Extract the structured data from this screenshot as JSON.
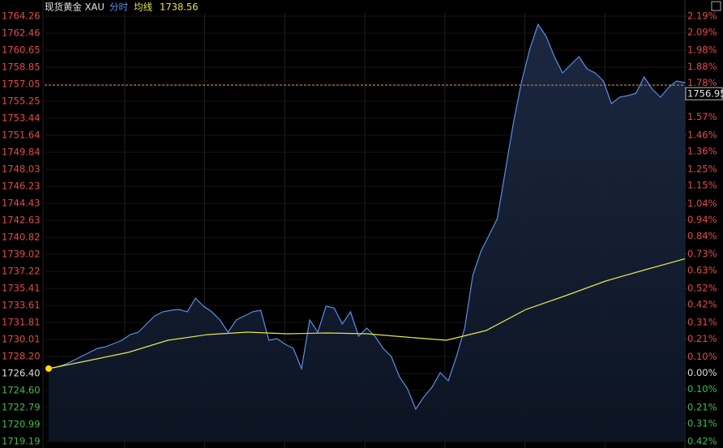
{
  "chart_data": {
    "type": "line",
    "title": "现货黄金 XAU",
    "series": [
      {
        "name": "分时",
        "color": "#5b8ee6",
        "values": [
          1726.92,
          1727.09,
          1727.35,
          1727.77,
          1728.2,
          1728.63,
          1729.06,
          1729.23,
          1729.58,
          1729.92,
          1730.52,
          1730.78,
          1731.64,
          1732.5,
          1732.93,
          1733.1,
          1733.18,
          1732.93,
          1734.38,
          1733.53,
          1732.93,
          1732.07,
          1730.78,
          1732.07,
          1732.5,
          1732.93,
          1733.1,
          1729.92,
          1730.09,
          1729.49,
          1729.06,
          1726.92,
          1732.07,
          1730.78,
          1733.53,
          1733.35,
          1731.64,
          1732.93,
          1730.35,
          1731.21,
          1730.35,
          1729.06,
          1728.2,
          1726.06,
          1724.77,
          1722.62,
          1723.91,
          1724.94,
          1726.49,
          1725.63,
          1728.2,
          1731.21,
          1736.79,
          1739.36,
          1741.08,
          1742.8,
          1747.95,
          1753.1,
          1757.39,
          1760.83,
          1763.4,
          1762.11,
          1759.97,
          1758.25,
          1759.11,
          1759.97,
          1758.68,
          1758.25,
          1757.39,
          1754.99,
          1755.68,
          1755.85,
          1756.1,
          1757.82,
          1756.53,
          1755.68,
          1756.71,
          1757.39,
          1757.22
        ]
      },
      {
        "name": "均线",
        "color": "#e6e64a",
        "values": [
          1726.92,
          1727.77,
          1728.63,
          1729.92,
          1730.52,
          1730.78,
          1730.61,
          1730.69,
          1730.61,
          1730.26,
          1729.92,
          1730.95,
          1733.18,
          1734.64,
          1736.19,
          1737.39,
          1738.56
        ]
      }
    ],
    "last_price": 1756.95,
    "ref_color": "#e08a3c",
    "up_color": "#e84a4a",
    "down_color": "#3cc04a",
    "flat_color": "#dddddd",
    "ylim": [
      1719.19,
      1764.26
    ],
    "yticks": [
      1764.26,
      1762.46,
      1760.65,
      1758.85,
      1757.05,
      1755.25,
      1753.44,
      1751.64,
      1749.84,
      1748.03,
      1746.23,
      1744.43,
      1742.63,
      1740.82,
      1739.02,
      1737.22,
      1735.41,
      1733.61,
      1731.81,
      1730.01,
      {
        "value": 1728.2,
        "label": "1728.20"
      },
      {
        "value": 1726.4,
        "label": "1726.40"
      },
      {
        "value": 1724.6,
        "label": "1724.60"
      },
      1722.79,
      1720.99,
      1719.19
    ],
    "y2lim": [
      -0.42,
      2.19
    ],
    "y2ticks": [
      {
        "value": 2.19,
        "label": "2.19%"
      },
      {
        "value": 2.09,
        "label": "2.09%"
      },
      {
        "value": 1.98,
        "label": "1.98%"
      },
      {
        "value": 1.88,
        "label": "1.88%"
      },
      {
        "value": 1.78,
        "label": "1.78%"
      },
      {
        "value": 1.57,
        "label": "1.57%"
      },
      {
        "value": 1.46,
        "label": "1.46%"
      },
      {
        "value": 1.36,
        "label": "1.36%"
      },
      {
        "value": 1.25,
        "label": "1.25%"
      },
      {
        "value": 1.15,
        "label": "1.15%"
      },
      {
        "value": 1.04,
        "label": "1.04%"
      },
      {
        "value": 0.94,
        "label": "0.94%"
      },
      {
        "value": 0.84,
        "label": "0.84%"
      },
      {
        "value": 0.73,
        "label": "0.73%"
      },
      {
        "value": 0.63,
        "label": "0.63%"
      },
      {
        "value": 0.52,
        "label": "0.52%"
      },
      {
        "value": 0.42,
        "label": "0.42%"
      },
      {
        "value": 0.31,
        "label": "0.31%"
      },
      {
        "value": 0.21,
        "label": "0.21%"
      },
      {
        "value": 0.1,
        "label": "0.10%"
      },
      {
        "value": 0,
        "label": "0.00%"
      },
      {
        "value": -0.1,
        "label": "0.10%"
      },
      {
        "value": -0.21,
        "label": "0.21%"
      },
      {
        "value": -0.31,
        "label": "0.31%"
      },
      {
        "value": -0.42,
        "label": "0.42%"
      }
    ],
    "grid": true
  }
}
